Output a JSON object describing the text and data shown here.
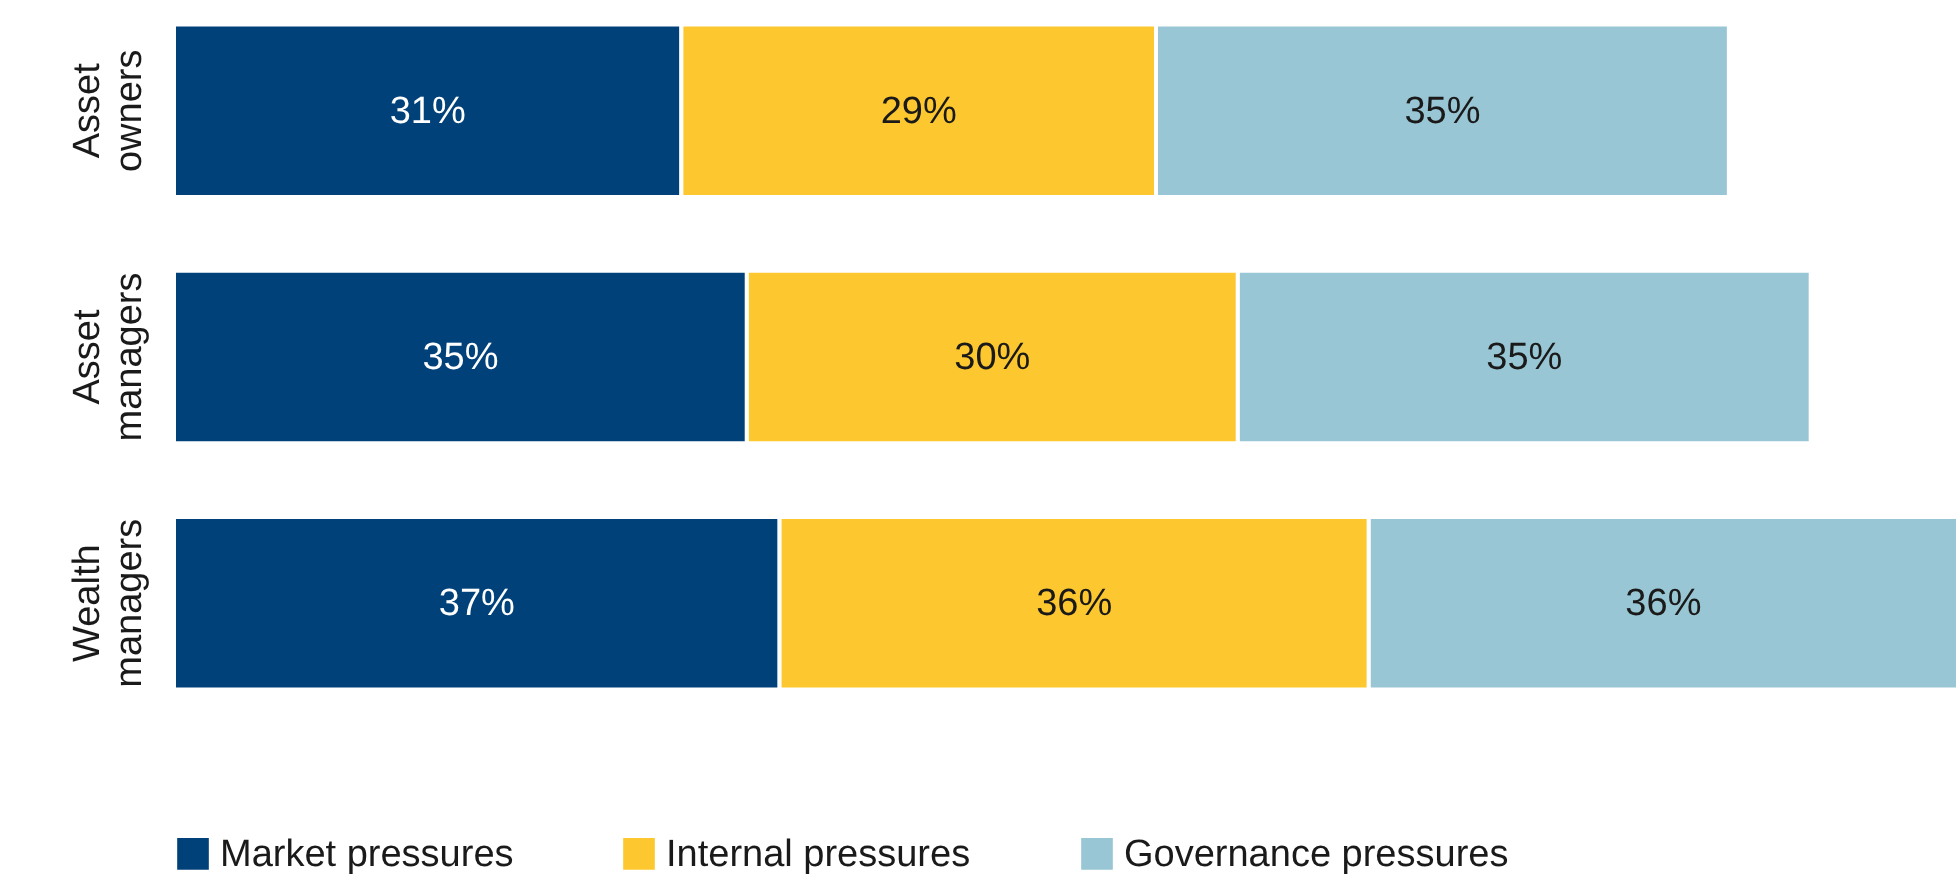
{
  "chart_data": {
    "type": "bar",
    "orientation": "horizontal",
    "stacked": true,
    "categories": [
      "Asset owners",
      "Asset managers",
      "Wealth managers"
    ],
    "series": [
      {
        "name": "Market pressures",
        "color": "#00417a",
        "values": [
          31,
          35,
          37
        ],
        "value_labels": [
          "31%",
          "35%",
          "37%"
        ]
      },
      {
        "name": "Internal pressures",
        "color": "#fdc82f",
        "values": [
          29,
          30,
          36
        ],
        "value_labels": [
          "29%",
          "30%",
          "36%"
        ]
      },
      {
        "name": "Governance pressures",
        "color": "#99c6d4",
        "values": [
          35,
          35,
          36
        ],
        "value_labels": [
          "35%",
          "35%",
          "36%"
        ]
      }
    ],
    "tick_labels": "y",
    "legend": "bottom",
    "grid": false
  }
}
